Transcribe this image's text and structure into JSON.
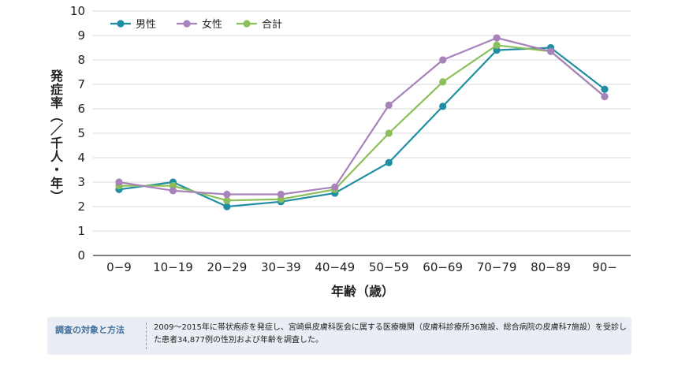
{
  "chart_data": {
    "type": "line",
    "categories": [
      "0−9",
      "10−19",
      "20−29",
      "30−39",
      "40−49",
      "50−59",
      "60−69",
      "70−79",
      "80−89",
      "90−"
    ],
    "series": [
      {
        "name": "男性",
        "color": "#1f8ea3",
        "values": [
          2.7,
          3.0,
          2.0,
          2.2,
          2.55,
          3.8,
          6.1,
          8.4,
          8.5,
          6.8
        ]
      },
      {
        "name": "女性",
        "color": "#a882bb",
        "values": [
          3.0,
          2.65,
          2.5,
          2.5,
          2.8,
          6.15,
          8.0,
          8.9,
          8.35,
          6.5
        ]
      },
      {
        "name": "合計",
        "color": "#8bbf5a",
        "values": [
          2.85,
          2.85,
          2.25,
          2.3,
          2.7,
          5.0,
          7.1,
          8.6,
          8.35,
          6.5
        ]
      }
    ],
    "xlabel": "年齢（歳）",
    "ylabel": "発症率（／千人・年）",
    "ylim": [
      0,
      10
    ],
    "yticks": [
      0,
      1,
      2,
      3,
      4,
      5,
      6,
      7,
      8,
      9,
      10
    ],
    "grid": true,
    "legend_position": "top-left"
  },
  "note": {
    "title": "調査の対象と方法",
    "text": "2009〜2015年に帯状疱疹を発症し、宮崎県皮膚科医会に属する医療機関（皮膚科診療所36施設、総合病院の皮膚科7施設）を受診した患者34,877例の性別および年齢を調査した。"
  }
}
